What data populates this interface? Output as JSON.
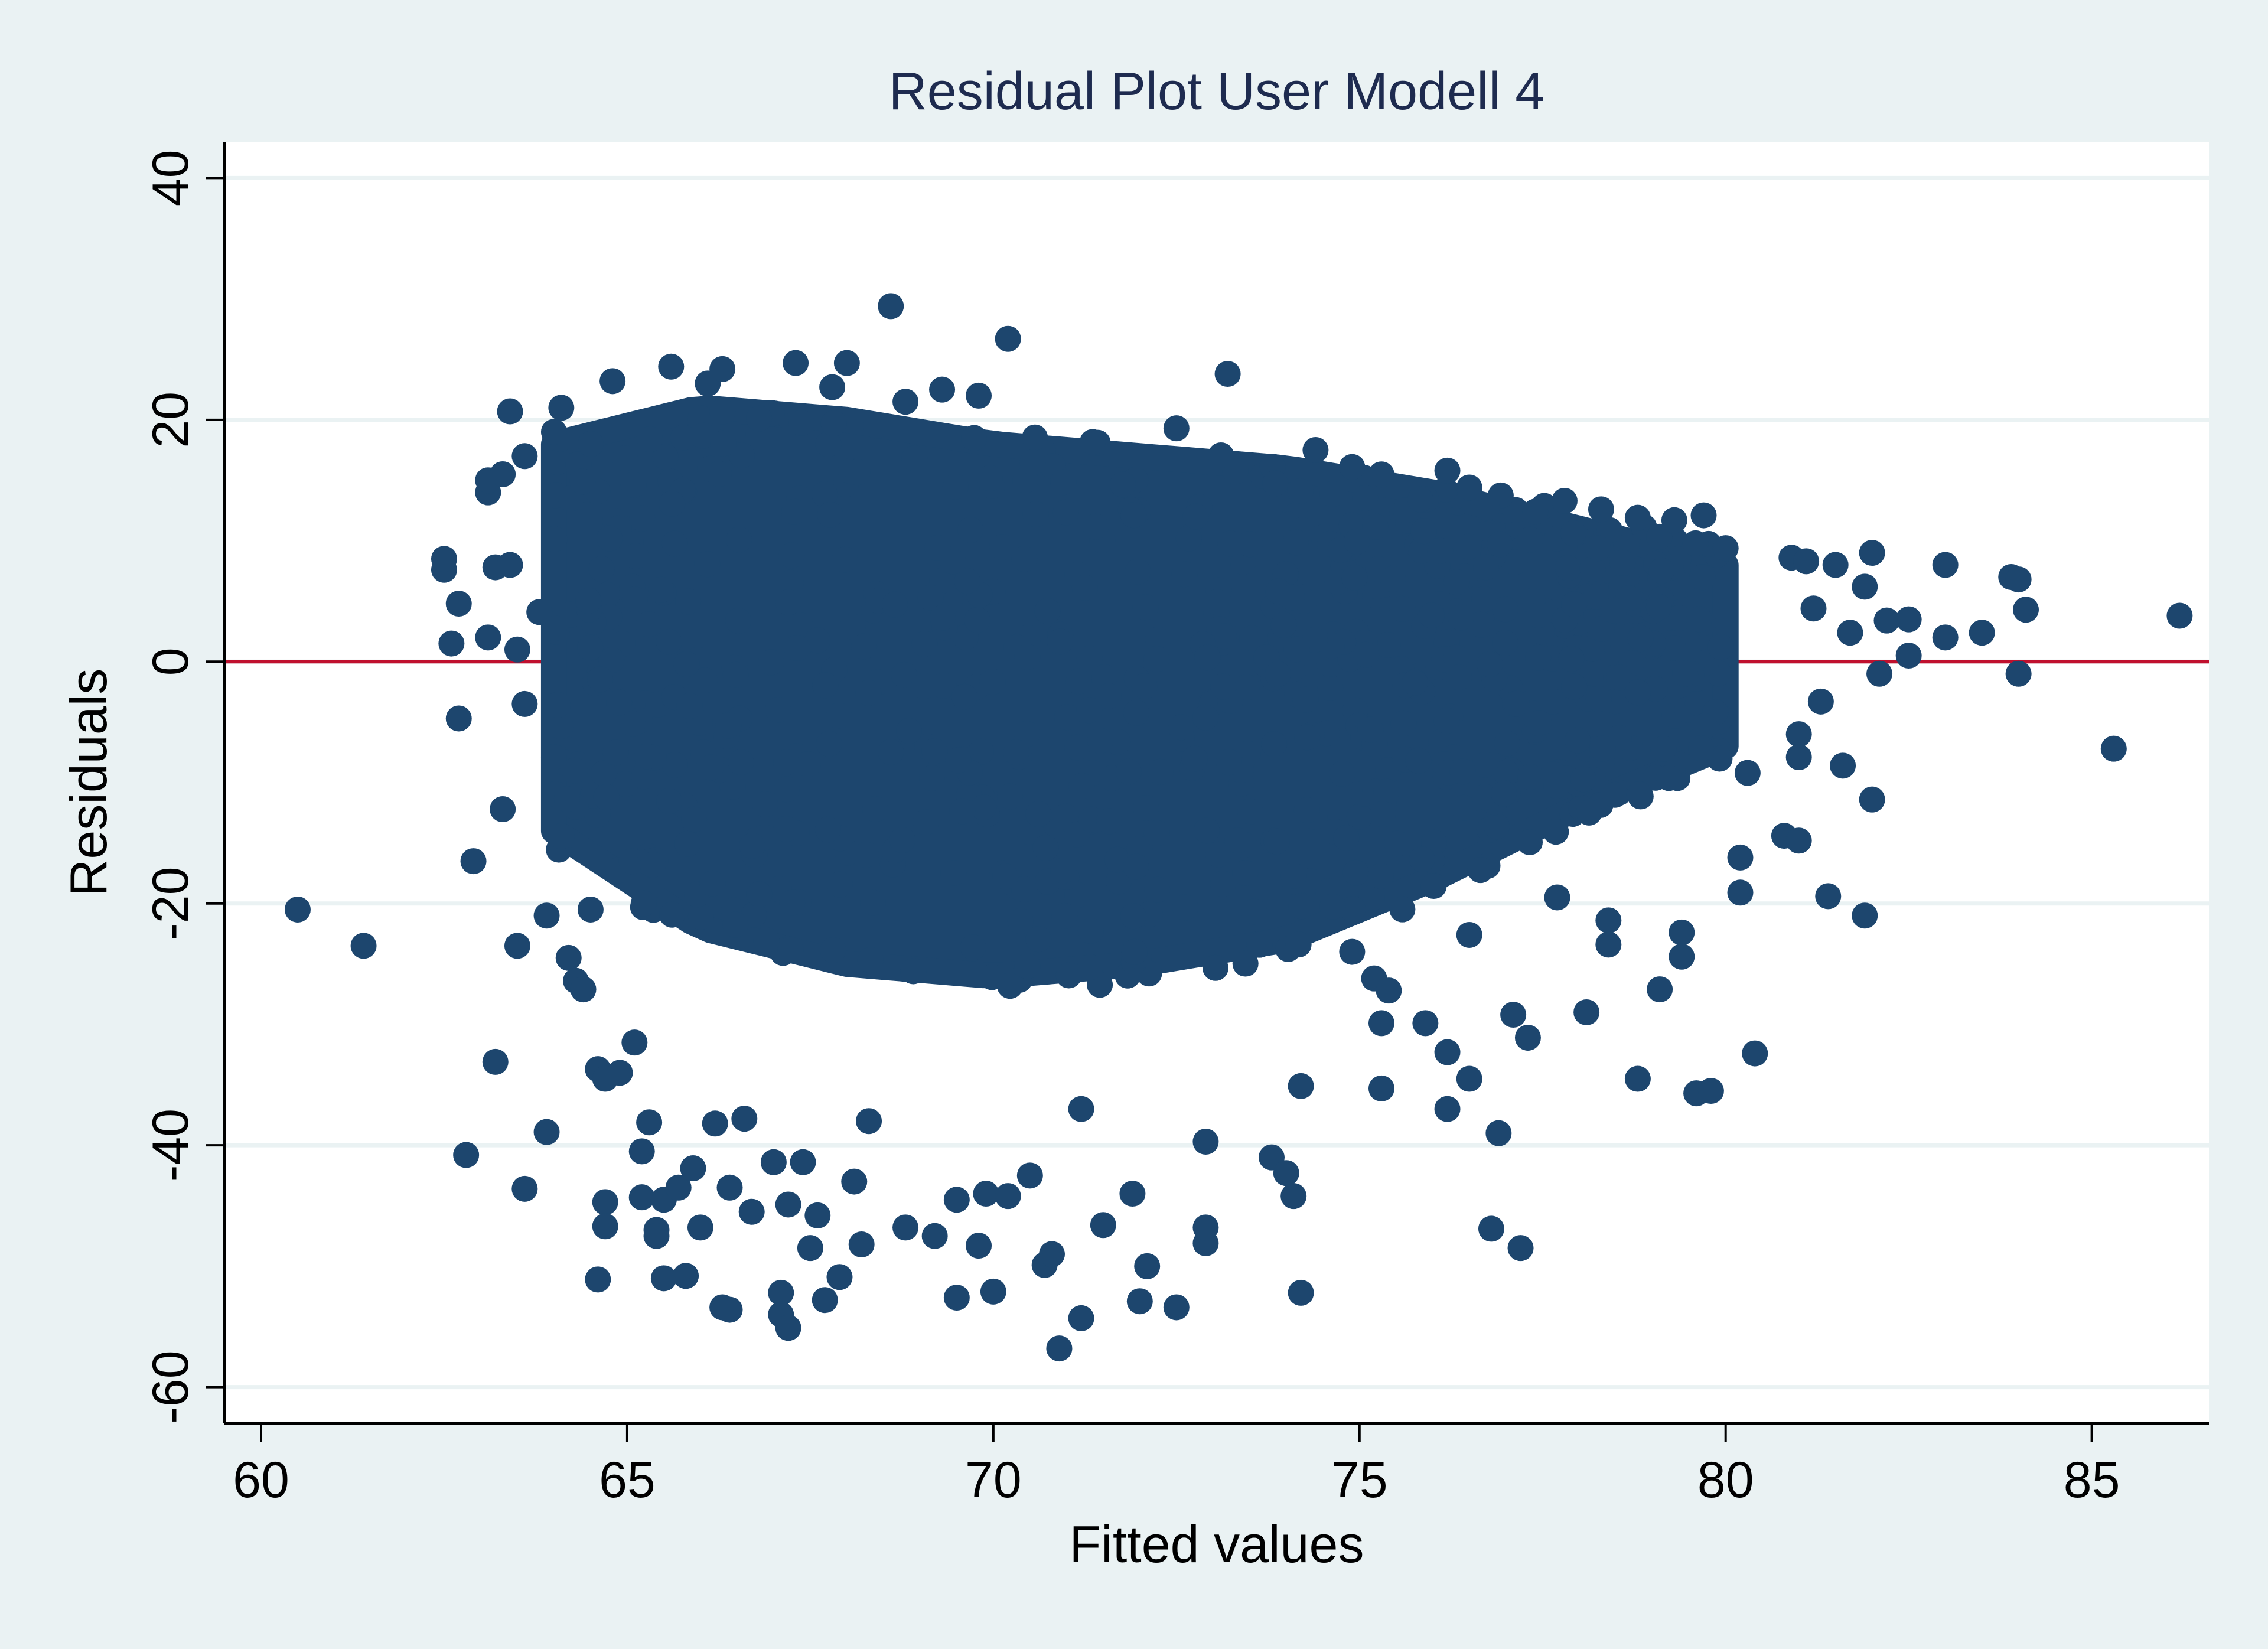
{
  "chart_data": {
    "type": "scatter",
    "title": "Residual Plot User Modell 4",
    "xlabel": "Fitted values",
    "ylabel": "Residuals",
    "xlim": [
      59.5,
      86.6
    ],
    "ylim": [
      -63,
      43
    ],
    "xticks": [
      60,
      65,
      70,
      75,
      80,
      85
    ],
    "yticks": [
      -60,
      -40,
      -20,
      0,
      20,
      40
    ],
    "grid": true,
    "reference_line": {
      "y": 0,
      "color": "#c0102e"
    },
    "colors": {
      "marker": "#1d466e",
      "plot_background": "#ffffff",
      "page_background": "#eaf2f3",
      "grid": "#eaf2f3"
    },
    "point_cloud": {
      "note_id": "dense-region",
      "x_range": [
        64,
        80
      ],
      "y_upper_at": [
        [
          64,
          18
        ],
        [
          66,
          21
        ],
        [
          68,
          20
        ],
        [
          70,
          18
        ],
        [
          72,
          17
        ],
        [
          74,
          16
        ],
        [
          76,
          14
        ],
        [
          78,
          11
        ],
        [
          80,
          8
        ]
      ],
      "y_lower_at": [
        [
          64,
          -14
        ],
        [
          66,
          -22
        ],
        [
          68,
          -25
        ],
        [
          70,
          -26
        ],
        [
          72,
          -25
        ],
        [
          74,
          -23
        ],
        [
          76,
          -18
        ],
        [
          78,
          -12
        ],
        [
          80,
          -7
        ]
      ]
    },
    "points": [
      [
        60.5,
        -20.5
      ],
      [
        61.4,
        -23.5
      ],
      [
        62.5,
        7.6
      ],
      [
        62.5,
        8.5
      ],
      [
        62.6,
        1.5
      ],
      [
        62.7,
        4.8
      ],
      [
        62.7,
        -4.7
      ],
      [
        62.8,
        -40.8
      ],
      [
        62.9,
        -16.5
      ],
      [
        63.1,
        2.0
      ],
      [
        63.1,
        14.0
      ],
      [
        63.1,
        15.0
      ],
      [
        63.2,
        7.8
      ],
      [
        63.2,
        -33.1
      ],
      [
        63.3,
        15.5
      ],
      [
        63.3,
        -12.2
      ],
      [
        63.4,
        20.7
      ],
      [
        63.4,
        8.0
      ],
      [
        63.5,
        1.0
      ],
      [
        63.5,
        -23.5
      ],
      [
        63.6,
        17.0
      ],
      [
        63.6,
        -3.5
      ],
      [
        63.6,
        -43.6
      ],
      [
        63.8,
        4.1
      ],
      [
        63.9,
        -21.0
      ],
      [
        63.9,
        -38.9
      ],
      [
        64.0,
        -7.9
      ],
      [
        64.0,
        19.0
      ],
      [
        64.1,
        21.0
      ],
      [
        64.2,
        -24.5
      ],
      [
        64.3,
        -26.4
      ],
      [
        64.4,
        -27.1
      ],
      [
        64.5,
        -20.5
      ],
      [
        64.6,
        -33.7
      ],
      [
        64.6,
        -51.1
      ],
      [
        64.7,
        -34.5
      ],
      [
        64.7,
        -44.7
      ],
      [
        64.7,
        -46.7
      ],
      [
        64.8,
        23.2
      ],
      [
        64.9,
        -34.0
      ],
      [
        65.1,
        -31.5
      ],
      [
        65.2,
        -40.5
      ],
      [
        65.2,
        -44.3
      ],
      [
        65.3,
        -38.1
      ],
      [
        65.4,
        -47.0
      ],
      [
        65.4,
        -47.5
      ],
      [
        65.5,
        -51.0
      ],
      [
        65.5,
        -44.5
      ],
      [
        65.6,
        24.4
      ],
      [
        65.7,
        -43.5
      ],
      [
        65.8,
        -50.8
      ],
      [
        65.9,
        -41.9
      ],
      [
        66.0,
        -46.8
      ],
      [
        66.1,
        23.0
      ],
      [
        66.2,
        -38.2
      ],
      [
        66.3,
        24.2
      ],
      [
        66.3,
        -53.4
      ],
      [
        66.4,
        -53.6
      ],
      [
        66.4,
        -43.5
      ],
      [
        66.6,
        -37.8
      ],
      [
        66.7,
        -45.5
      ],
      [
        66.8,
        20.1
      ],
      [
        67.0,
        -41.4
      ],
      [
        67.1,
        -52.2
      ],
      [
        67.1,
        -54.0
      ],
      [
        67.2,
        -55.1
      ],
      [
        67.2,
        -44.9
      ],
      [
        67.3,
        24.7
      ],
      [
        67.4,
        -41.4
      ],
      [
        67.5,
        -48.5
      ],
      [
        67.6,
        -45.8
      ],
      [
        67.7,
        -52.8
      ],
      [
        67.8,
        22.7
      ],
      [
        67.9,
        -50.9
      ],
      [
        68.0,
        24.7
      ],
      [
        68.1,
        -43.0
      ],
      [
        68.2,
        -48.2
      ],
      [
        68.3,
        -38.0
      ],
      [
        68.6,
        29.4
      ],
      [
        68.8,
        21.5
      ],
      [
        68.8,
        -46.8
      ],
      [
        69.2,
        -47.5
      ],
      [
        69.3,
        22.5
      ],
      [
        69.5,
        -52.6
      ],
      [
        69.5,
        -44.5
      ],
      [
        69.8,
        22.0
      ],
      [
        69.8,
        -48.3
      ],
      [
        69.9,
        -44.0
      ],
      [
        70.0,
        -52.1
      ],
      [
        70.2,
        -44.2
      ],
      [
        70.2,
        26.7
      ],
      [
        70.5,
        -42.5
      ],
      [
        70.7,
        -49.9
      ],
      [
        70.8,
        -49.0
      ],
      [
        70.9,
        -56.8
      ],
      [
        71.2,
        -54.3
      ],
      [
        71.2,
        -37.0
      ],
      [
        71.5,
        -46.6
      ],
      [
        71.9,
        -44.0
      ],
      [
        72.0,
        -52.9
      ],
      [
        72.1,
        -50.0
      ],
      [
        72.5,
        -53.4
      ],
      [
        72.5,
        19.3
      ],
      [
        72.9,
        -48.1
      ],
      [
        72.9,
        -46.8
      ],
      [
        72.9,
        -39.7
      ],
      [
        73.2,
        23.8
      ],
      [
        73.8,
        -41.0
      ],
      [
        74.0,
        -42.3
      ],
      [
        74.1,
        -44.2
      ],
      [
        74.2,
        -52.2
      ],
      [
        74.2,
        -35.1
      ],
      [
        74.4,
        17.5
      ],
      [
        74.9,
        -24.0
      ],
      [
        74.9,
        16.1
      ],
      [
        75.2,
        -26.2
      ],
      [
        75.3,
        -29.9
      ],
      [
        75.3,
        -35.3
      ],
      [
        75.4,
        -27.2
      ],
      [
        75.9,
        -29.9
      ],
      [
        76.2,
        -32.3
      ],
      [
        76.2,
        -37.0
      ],
      [
        76.5,
        -34.5
      ],
      [
        76.5,
        -22.6
      ],
      [
        76.2,
        15.8
      ],
      [
        76.5,
        14.4
      ],
      [
        76.8,
        -46.9
      ],
      [
        76.9,
        -39.0
      ],
      [
        77.2,
        -48.5
      ],
      [
        77.1,
        -29.2
      ],
      [
        77.3,
        -31.1
      ],
      [
        77.4,
        12.4
      ],
      [
        77.7,
        -19.5
      ],
      [
        77.8,
        13.3
      ],
      [
        78.1,
        -29.0
      ],
      [
        78.3,
        12.6
      ],
      [
        78.4,
        -21.4
      ],
      [
        78.4,
        -23.4
      ],
      [
        78.8,
        -34.5
      ],
      [
        78.8,
        11.9
      ],
      [
        79.1,
        -27.1
      ],
      [
        79.3,
        11.7
      ],
      [
        79.4,
        -22.4
      ],
      [
        79.4,
        -24.4
      ],
      [
        79.6,
        -35.7
      ],
      [
        79.7,
        12.1
      ],
      [
        79.8,
        -35.5
      ],
      [
        80.2,
        -16.2
      ],
      [
        80.2,
        -19.1
      ],
      [
        80.3,
        -9.2
      ],
      [
        80.4,
        -32.4
      ],
      [
        80.8,
        -14.4
      ],
      [
        80.9,
        8.6
      ],
      [
        81.0,
        -6.0
      ],
      [
        81.0,
        -7.9
      ],
      [
        81.0,
        -14.8
      ],
      [
        81.1,
        8.3
      ],
      [
        81.2,
        4.4
      ],
      [
        81.3,
        -3.3
      ],
      [
        81.4,
        -19.4
      ],
      [
        81.5,
        8.0
      ],
      [
        81.6,
        -8.6
      ],
      [
        81.7,
        2.4
      ],
      [
        81.9,
        6.2
      ],
      [
        81.9,
        -21.0
      ],
      [
        82.0,
        9.0
      ],
      [
        82.0,
        -11.4
      ],
      [
        82.1,
        -1.0
      ],
      [
        82.2,
        3.4
      ],
      [
        82.5,
        0.5
      ],
      [
        82.5,
        3.5
      ],
      [
        83.0,
        8.0
      ],
      [
        83.0,
        2.0
      ],
      [
        83.5,
        2.4
      ],
      [
        83.9,
        7.0
      ],
      [
        84.0,
        6.8
      ],
      [
        84.0,
        -1.0
      ],
      [
        84.1,
        4.3
      ],
      [
        85.3,
        -7.2
      ],
      [
        86.2,
        3.8
      ]
    ]
  }
}
